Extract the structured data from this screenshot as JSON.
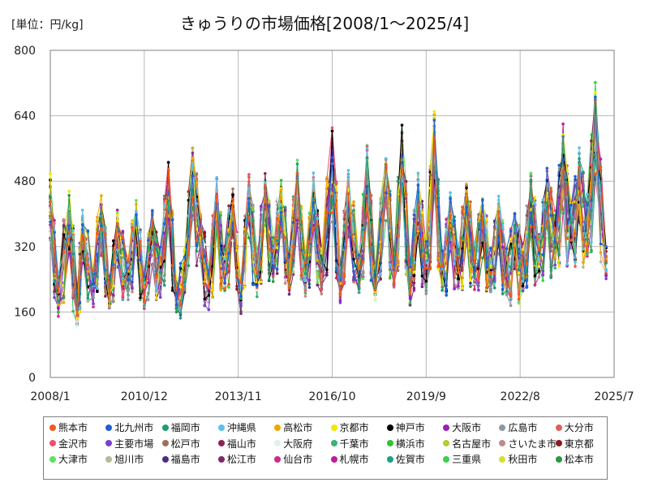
{
  "header": {
    "unit_label": "[単位：円/kg]",
    "title": "きゅうりの市場価格[2008/1～2025/4]"
  },
  "chart_data": {
    "type": "line",
    "title": "きゅうりの市場価格[2008/1～2025/4]",
    "ylabel": "[単位：円/kg]",
    "xlabel": "",
    "xlim": [
      "2008/1",
      "2025/7"
    ],
    "ylim": [
      0,
      800
    ],
    "grid": true,
    "legend_position": "bottom",
    "y_ticks": [
      0,
      160,
      320,
      480,
      640,
      800
    ],
    "x_ticks": [
      "2008/1",
      "2010/12",
      "2013/11",
      "2016/10",
      "2019/9",
      "2022/8",
      "2025/7"
    ],
    "x_period": [
      "2008/1",
      "2025/4"
    ],
    "envelope": {
      "x": [
        "2008/1",
        "2008/4",
        "2008/8",
        "2008/11",
        "2009/1",
        "2009/5",
        "2009/8",
        "2009/11",
        "2010/2",
        "2010/6",
        "2010/9",
        "2010/12",
        "2011/3",
        "2011/6",
        "2011/9",
        "2011/12",
        "2012/3",
        "2012/6",
        "2012/9",
        "2012/12",
        "2013/3",
        "2013/6",
        "2013/9",
        "2013/12",
        "2014/3",
        "2014/6",
        "2014/9",
        "2014/12",
        "2015/3",
        "2015/6",
        "2015/9",
        "2015/12",
        "2016/3",
        "2016/6",
        "2016/10",
        "2017/1",
        "2017/4",
        "2017/8",
        "2017/11",
        "2018/2",
        "2018/6",
        "2018/9",
        "2018/12",
        "2019/3",
        "2019/6",
        "2019/9",
        "2019/12",
        "2020/3",
        "2020/6",
        "2020/9",
        "2020/12",
        "2021/3",
        "2021/6",
        "2021/9",
        "2021/12",
        "2022/3",
        "2022/6",
        "2022/9",
        "2022/12",
        "2023/3",
        "2023/6",
        "2023/9",
        "2023/12",
        "2024/3",
        "2024/6",
        "2024/9",
        "2024/12",
        "2025/4"
      ],
      "high": [
        510,
        260,
        520,
        240,
        420,
        300,
        490,
        260,
        420,
        320,
        450,
        280,
        430,
        330,
        560,
        260,
        330,
        590,
        420,
        300,
        500,
        350,
        500,
        260,
        540,
        320,
        520,
        360,
        540,
        330,
        560,
        320,
        500,
        340,
        660,
        300,
        540,
        320,
        600,
        300,
        580,
        330,
        660,
        300,
        520,
        350,
        690,
        320,
        460,
        330,
        520,
        340,
        460,
        330,
        450,
        320,
        420,
        330,
        530,
        360,
        520,
        420,
        620,
        450,
        580,
        450,
        750,
        320
      ],
      "mid": [
        420,
        200,
        380,
        170,
        330,
        220,
        380,
        200,
        340,
        240,
        360,
        220,
        340,
        250,
        450,
        190,
        250,
        480,
        340,
        220,
        400,
        260,
        410,
        200,
        430,
        250,
        420,
        290,
        430,
        260,
        450,
        250,
        420,
        260,
        500,
        230,
        430,
        250,
        470,
        230,
        460,
        260,
        530,
        230,
        410,
        270,
        550,
        250,
        380,
        260,
        410,
        270,
        380,
        260,
        370,
        250,
        340,
        260,
        430,
        290,
        420,
        340,
        500,
        370,
        470,
        370,
        600,
        280
      ],
      "low": [
        270,
        120,
        230,
        90,
        210,
        140,
        260,
        130,
        230,
        150,
        240,
        140,
        230,
        150,
        300,
        120,
        160,
        320,
        220,
        130,
        260,
        160,
        280,
        130,
        300,
        150,
        290,
        180,
        300,
        160,
        310,
        160,
        280,
        170,
        320,
        150,
        300,
        160,
        320,
        150,
        310,
        170,
        350,
        150,
        270,
        170,
        360,
        160,
        240,
        170,
        260,
        180,
        240,
        170,
        240,
        150,
        200,
        160,
        270,
        180,
        270,
        210,
        300,
        230,
        300,
        230,
        360,
        200
      ]
    },
    "series": [
      {
        "name": "熊本市",
        "color": "#f05a1a"
      },
      {
        "name": "北九州市",
        "color": "#1f5fd8"
      },
      {
        "name": "福岡市",
        "color": "#1a9e73"
      },
      {
        "name": "沖縄県",
        "color": "#5bc0eb"
      },
      {
        "name": "高松市",
        "color": "#f0a500"
      },
      {
        "name": "京都市",
        "color": "#f5e600"
      },
      {
        "name": "神戸市",
        "color": "#000000"
      },
      {
        "name": "大阪市",
        "color": "#9b1fb5"
      },
      {
        "name": "広島市",
        "color": "#8a9aa6"
      },
      {
        "name": "大分市",
        "color": "#e0605a"
      },
      {
        "name": "金沢市",
        "color": "#f0506e"
      },
      {
        "name": "主要市場",
        "color": "#7b3fd0"
      },
      {
        "name": "松戸市",
        "color": "#a0705a"
      },
      {
        "name": "福山市",
        "color": "#8b2252"
      },
      {
        "name": "大阪府",
        "color": "#e0f0ea"
      },
      {
        "name": "千葉市",
        "color": "#3cb371"
      },
      {
        "name": "横浜市",
        "color": "#2ec42e"
      },
      {
        "name": "名古屋市",
        "color": "#b5cc2e"
      },
      {
        "name": "さいたま市",
        "color": "#c08a8a"
      },
      {
        "name": "東京都",
        "color": "#8b1a1a"
      },
      {
        "name": "大津市",
        "color": "#5ae65a"
      },
      {
        "name": "旭川市",
        "color": "#b8b89a"
      },
      {
        "name": "福島市",
        "color": "#4b2e83"
      },
      {
        "name": "松江市",
        "color": "#7a2a6a"
      },
      {
        "name": "仙台市",
        "color": "#d02a8a"
      },
      {
        "name": "札幌市",
        "color": "#c01aa0"
      },
      {
        "name": "佐賀市",
        "color": "#1aa08a"
      },
      {
        "name": "三重県",
        "color": "#3ad24a"
      },
      {
        "name": "秋田市",
        "color": "#d8e030"
      },
      {
        "name": "松本市",
        "color": "#2a9a3a"
      }
    ]
  }
}
